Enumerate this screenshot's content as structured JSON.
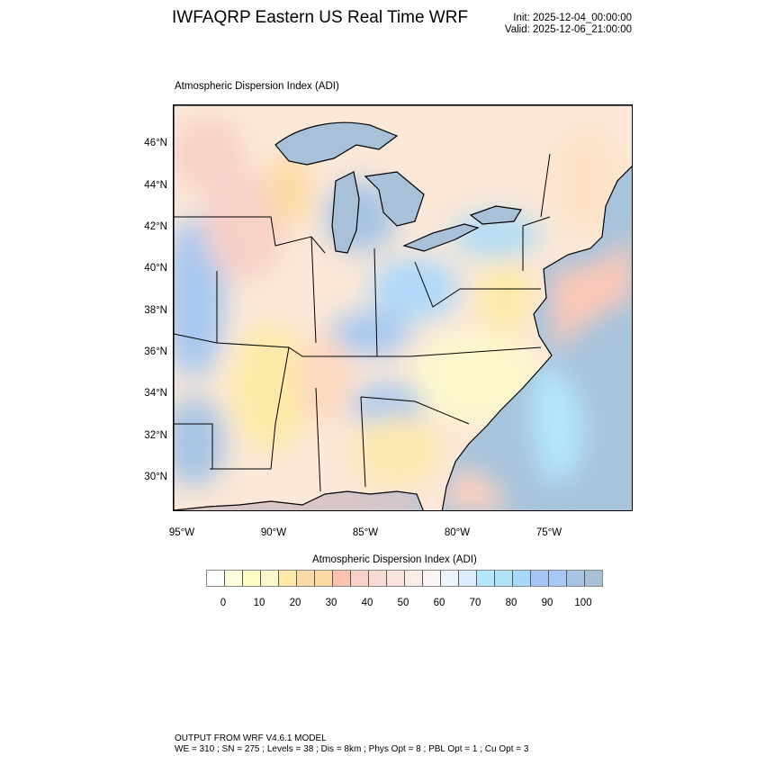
{
  "header": {
    "title": "IWFAQRP Eastern US Real Time WRF",
    "init": "Init: 2025-12-04_00:00:00",
    "valid": "Valid: 2025-12-06_21:00:00"
  },
  "map": {
    "subtitle": "Atmospheric Dispersion Index   (ADI)",
    "lat_labels": [
      "46°N",
      "44°N",
      "42°N",
      "40°N",
      "38°N",
      "36°N",
      "34°N",
      "32°N",
      "30°N"
    ],
    "lon_labels": [
      "95°W",
      "90°W",
      "85°W",
      "80°W",
      "75°W"
    ],
    "colors": {
      "ocean": "#a8c4dc",
      "lake": "#a8c0d8",
      "land": "#fbe8d8"
    }
  },
  "colorbar": {
    "title": "Atmospheric Dispersion Index  (ADI)",
    "labels": [
      "0",
      "10",
      "20",
      "30",
      "40",
      "50",
      "60",
      "70",
      "80",
      "90",
      "100"
    ],
    "colors": [
      "#ffffff",
      "#fffde0",
      "#fffcc4",
      "#fdf8cc",
      "#fdeaa8",
      "#fcdaa8",
      "#fddaa4",
      "#fcc2b0",
      "#f7d0c8",
      "#f7dad2",
      "#f8e4dc",
      "#fbece8",
      "#fdf5f5",
      "#eef4fc",
      "#dcecfc",
      "#b4e6fc",
      "#b0e2f8",
      "#a8d8f8",
      "#a8c4f4",
      "#a8c8f8",
      "#a8c4e4",
      "#a8c0d4"
    ]
  },
  "footer": {
    "line1": "OUTPUT FROM WRF V4.6.1 MODEL",
    "line2": "WE = 310 ; SN = 275 ; Levels = 38 ; Dis = 8km ; Phys Opt = 8 ; PBL Opt = 1 ; Cu Opt = 3"
  }
}
